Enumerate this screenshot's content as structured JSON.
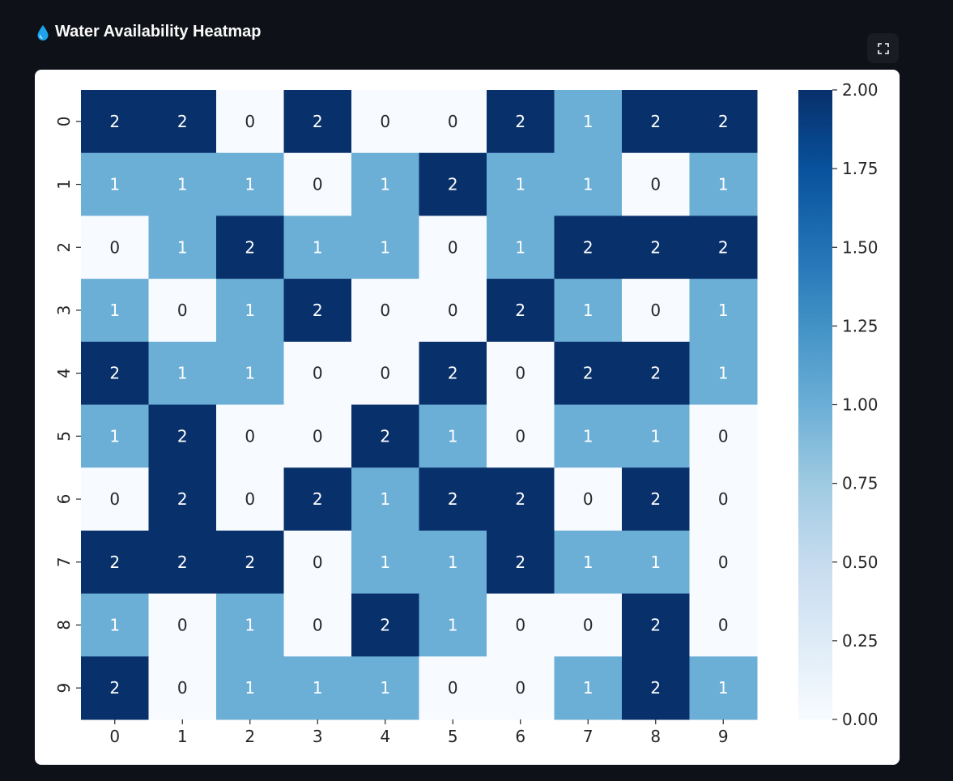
{
  "header": {
    "icon": "water-drop-icon",
    "title": "Water Availability Heatmap"
  },
  "toolbar": {
    "fullscreen_icon": "fullscreen-icon"
  },
  "colors": {
    "page_bg": "#0e1117",
    "low": "#f7fbff",
    "mid": "#6baed6",
    "high": "#08306b"
  },
  "chart_data": {
    "type": "heatmap",
    "title": "",
    "xlabel": "",
    "ylabel": "",
    "x_categories": [
      "0",
      "1",
      "2",
      "3",
      "4",
      "5",
      "6",
      "7",
      "8",
      "9"
    ],
    "y_categories": [
      "0",
      "1",
      "2",
      "3",
      "4",
      "5",
      "6",
      "7",
      "8",
      "9"
    ],
    "values": [
      [
        2,
        2,
        0,
        2,
        0,
        0,
        2,
        1,
        2,
        2
      ],
      [
        1,
        1,
        1,
        0,
        1,
        2,
        1,
        1,
        0,
        1
      ],
      [
        0,
        1,
        2,
        1,
        1,
        0,
        1,
        2,
        2,
        2
      ],
      [
        1,
        0,
        1,
        2,
        0,
        0,
        2,
        1,
        0,
        1
      ],
      [
        2,
        1,
        1,
        0,
        0,
        2,
        0,
        2,
        2,
        1
      ],
      [
        1,
        2,
        0,
        0,
        2,
        1,
        0,
        1,
        1,
        0
      ],
      [
        0,
        2,
        0,
        2,
        1,
        2,
        2,
        0,
        2,
        0
      ],
      [
        2,
        2,
        2,
        0,
        1,
        1,
        2,
        1,
        1,
        0
      ],
      [
        1,
        0,
        1,
        0,
        2,
        1,
        0,
        0,
        2,
        0
      ],
      [
        2,
        0,
        1,
        1,
        1,
        0,
        0,
        1,
        2,
        1
      ]
    ],
    "annotations": true,
    "colormap": "Blues",
    "vmin": 0,
    "vmax": 2,
    "colorbar_ticks": [
      "0.00",
      "0.25",
      "0.50",
      "0.75",
      "1.00",
      "1.25",
      "1.50",
      "1.75",
      "2.00"
    ]
  }
}
